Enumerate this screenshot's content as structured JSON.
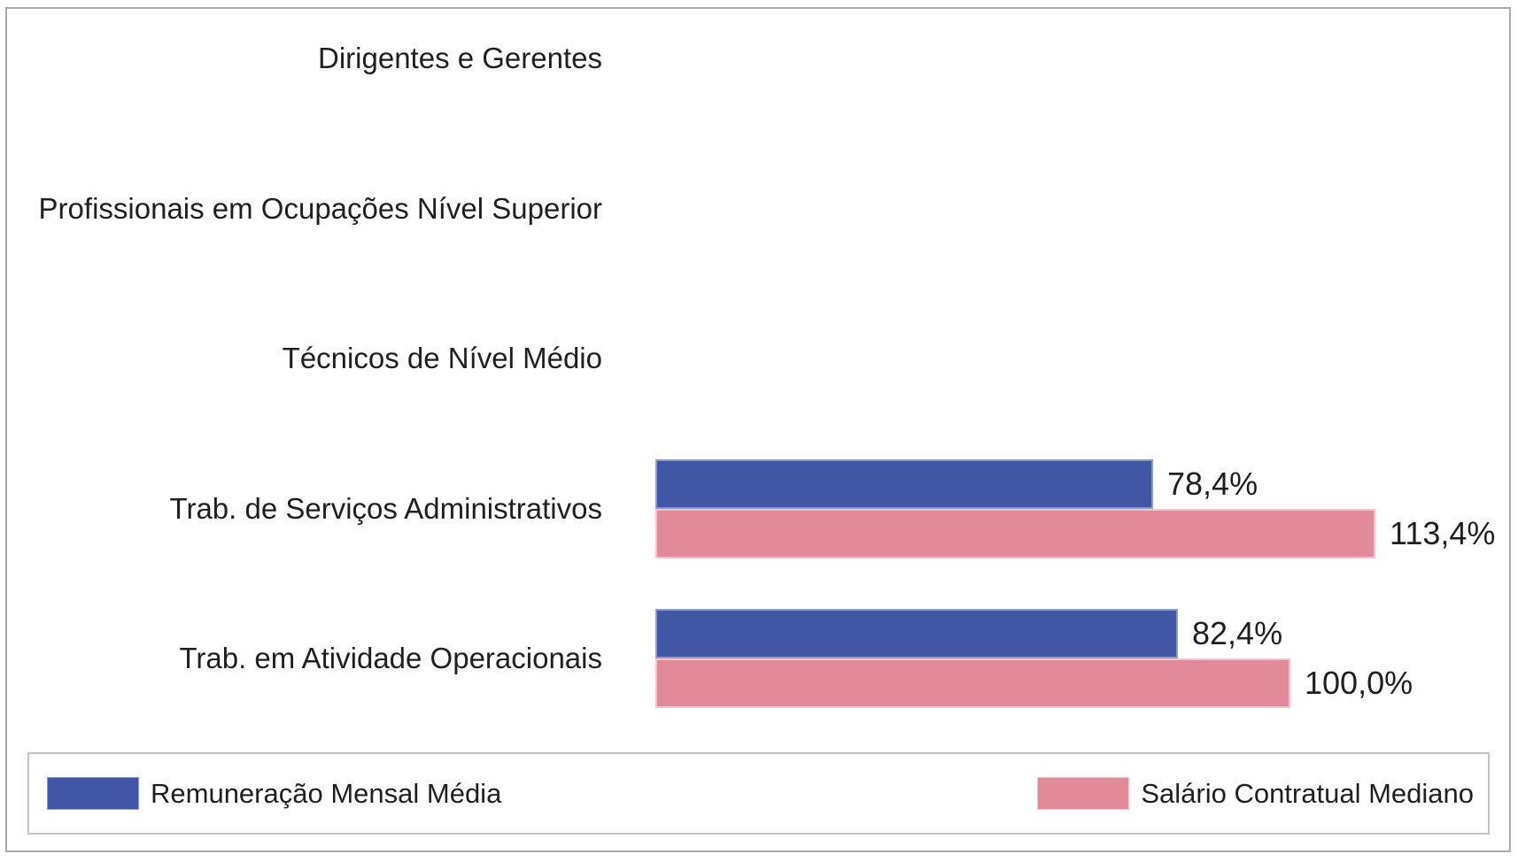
{
  "chart_data": {
    "type": "bar",
    "orientation": "horizontal",
    "title": "",
    "xlabel": "",
    "ylabel": "",
    "categories": [
      "Dirigentes e Gerentes",
      "Profissionais em Ocupações Nível Superior",
      "Técnicos de Nível Médio",
      "Trab. de Serviços Administrativos",
      "Trab. em Atividade Operacionais"
    ],
    "series": [
      {
        "name": "Remuneração Mensal Média",
        "color": "#4156a5",
        "edge_color": "#8c9ac8",
        "values": [
          null,
          null,
          null,
          78.4,
          82.4
        ],
        "data_labels": [
          "",
          "",
          "",
          "78,4%",
          "82,4%"
        ]
      },
      {
        "name": "Salário Contratual Mediano",
        "color": "#e18a99",
        "edge_color": "#f2c3cb",
        "values": [
          null,
          null,
          null,
          113.4,
          100.0
        ],
        "data_labels": [
          "",
          "",
          "",
          "113,4%",
          "100,0%"
        ]
      }
    ],
    "value_axis": {
      "min": 0,
      "max": 135,
      "unit": "%",
      "gridlines": false,
      "axis_line": false
    },
    "data_labels_shown": true,
    "legend_position": "bottom"
  },
  "legend": {
    "items": [
      {
        "label": "Remuneração Mensal Média",
        "color": "#4156a5",
        "edge_color": "#8c9ac8"
      },
      {
        "label": "Salário Contratual Mediano",
        "color": "#e18a99",
        "edge_color": "#f2c3cb"
      }
    ]
  }
}
